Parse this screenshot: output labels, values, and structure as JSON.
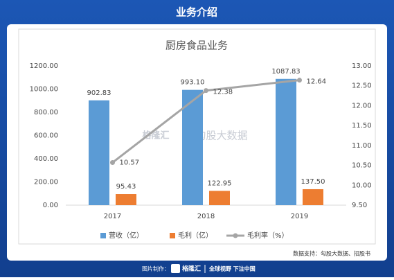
{
  "header": {
    "title": "业务介绍"
  },
  "watermark": [
    "格隆汇",
    "勾股大数据"
  ],
  "source": "数据支持：勾股大数据、招股书",
  "footer": {
    "made_by": "图片制作：",
    "brand": "格隆汇",
    "slogan": "全球视野 下注中国"
  },
  "chart_data": {
    "type": "bar",
    "title": "厨房食品业务",
    "categories": [
      "2017",
      "2018",
      "2019"
    ],
    "series": [
      {
        "name": "营收（亿）",
        "color": "#5b9bd5",
        "values": [
          902.83,
          993.1,
          1087.83
        ],
        "value_labels": [
          "902.83",
          "993.10",
          "1087.83"
        ]
      },
      {
        "name": "毛利（亿）",
        "color": "#ed7d31",
        "values": [
          95.43,
          122.95,
          137.5
        ],
        "value_labels": [
          "95.43",
          "122.95",
          "137.50"
        ]
      },
      {
        "name": "毛利率（%）",
        "type": "line",
        "axis": "y2",
        "color": "#a5a5a5",
        "values": [
          10.57,
          12.38,
          12.64
        ]
      }
    ],
    "ylim": [
      0,
      1200
    ],
    "yticks": [
      {
        "value": 0,
        "label": "0.00"
      },
      {
        "value": 200,
        "label": "200.00"
      },
      {
        "value": 400,
        "label": "400.00"
      },
      {
        "value": 600,
        "label": "600.00"
      },
      {
        "value": 800,
        "label": "800.00"
      },
      {
        "value": 1000,
        "label": "1000.00"
      },
      {
        "value": 1200,
        "label": "1200.00"
      }
    ],
    "y2lim": [
      9.5,
      13
    ],
    "y2ticks": [
      {
        "value": 9.5,
        "label": "9.50"
      },
      {
        "value": 10,
        "label": "10.00"
      },
      {
        "value": 10.5,
        "label": "10.50"
      },
      {
        "value": 11,
        "label": "11.00"
      },
      {
        "value": 11.5,
        "label": "11.50"
      },
      {
        "value": 12,
        "label": "12.00"
      },
      {
        "value": 12.5,
        "label": "12.50"
      },
      {
        "value": 13,
        "label": "13.00"
      }
    ]
  }
}
